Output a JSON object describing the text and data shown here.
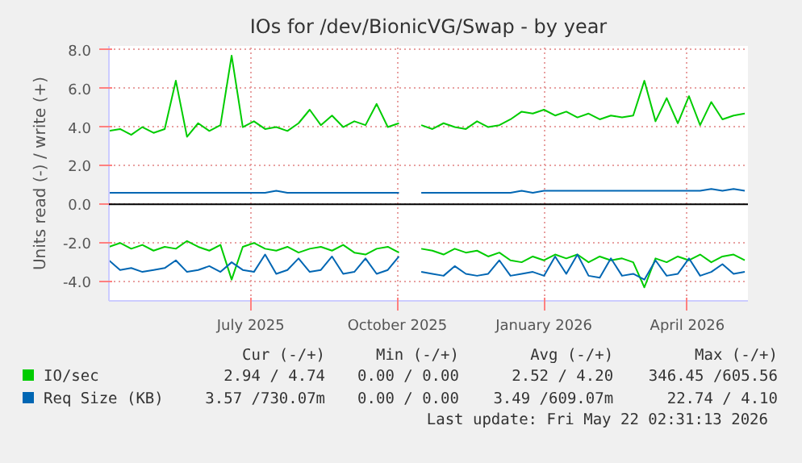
{
  "chart_data": {
    "type": "line",
    "title": "IOs for /dev/BionicVG/Swap - by year",
    "ylabel": "Units read (-) / write (+)",
    "x": [
      "2025-04-18",
      "2025-04-25",
      "2025-05-02",
      "2025-05-09",
      "2025-05-16",
      "2025-05-23",
      "2025-05-30",
      "2025-06-06",
      "2025-06-13",
      "2025-06-20",
      "2025-06-27",
      "2025-07-04",
      "2025-07-11",
      "2025-07-18",
      "2025-07-25",
      "2025-08-01",
      "2025-08-08",
      "2025-08-15",
      "2025-08-22",
      "2025-08-29",
      "2025-09-05",
      "2025-09-12",
      "2025-09-19",
      "2025-09-26",
      "2025-10-03",
      "2025-10-10",
      "2025-10-17",
      "2025-10-24",
      "2025-10-31",
      "2025-11-07",
      "2025-11-14",
      "2025-11-21",
      "2025-11-28",
      "2025-12-05",
      "2025-12-12",
      "2025-12-19",
      "2025-12-26",
      "2026-01-02",
      "2026-01-09",
      "2026-01-16",
      "2026-01-23",
      "2026-01-30",
      "2026-02-06",
      "2026-02-13",
      "2026-02-20",
      "2026-02-27",
      "2026-03-06",
      "2026-03-13",
      "2026-03-20",
      "2026-03-27",
      "2026-04-03",
      "2026-04-10",
      "2026-04-17",
      "2026-04-24",
      "2026-05-01",
      "2026-05-08",
      "2026-05-15",
      "2026-05-22"
    ],
    "series": [
      {
        "name": "IO/sec",
        "color": "#00cc00",
        "values": [
          3.8,
          3.9,
          3.6,
          4.0,
          3.7,
          3.9,
          6.4,
          3.5,
          4.2,
          3.8,
          4.1,
          7.7,
          4.0,
          4.3,
          3.9,
          4.0,
          3.8,
          4.2,
          4.9,
          4.1,
          4.6,
          4.0,
          4.3,
          4.1,
          5.2,
          4.0,
          4.2,
          null,
          4.1,
          3.9,
          4.2,
          4.0,
          3.9,
          4.3,
          4.0,
          4.1,
          4.4,
          4.8,
          4.7,
          4.9,
          4.6,
          4.8,
          4.5,
          4.7,
          4.4,
          4.6,
          4.5,
          4.6,
          6.4,
          4.3,
          5.5,
          4.2,
          5.6,
          4.1,
          5.3,
          4.4,
          4.6,
          4.7
        ]
      },
      {
        "color": "#00cc00",
        "values": [
          -2.2,
          -2.0,
          -2.3,
          -2.1,
          -2.4,
          -2.2,
          -2.3,
          -1.9,
          -2.2,
          -2.4,
          -2.1,
          -3.9,
          -2.2,
          -2.0,
          -2.3,
          -2.4,
          -2.2,
          -2.5,
          -2.3,
          -2.2,
          -2.4,
          -2.1,
          -2.5,
          -2.6,
          -2.3,
          -2.2,
          -2.5,
          null,
          -2.3,
          -2.4,
          -2.6,
          -2.3,
          -2.5,
          -2.4,
          -2.7,
          -2.5,
          -2.9,
          -3.0,
          -2.7,
          -2.9,
          -2.6,
          -2.8,
          -2.6,
          -3.0,
          -2.7,
          -2.9,
          -2.8,
          -3.0,
          -4.3,
          -2.8,
          -3.0,
          -2.7,
          -2.9,
          -2.6,
          -3.0,
          -2.7,
          -2.6,
          -2.9
        ]
      },
      {
        "name": "Req Size (KB)",
        "color": "#0066b3",
        "values": [
          0.6,
          0.6,
          0.6,
          0.6,
          0.6,
          0.6,
          0.6,
          0.6,
          0.6,
          0.6,
          0.6,
          0.6,
          0.6,
          0.6,
          0.6,
          0.7,
          0.6,
          0.6,
          0.6,
          0.6,
          0.6,
          0.6,
          0.6,
          0.6,
          0.6,
          0.6,
          0.6,
          null,
          0.6,
          0.6,
          0.6,
          0.6,
          0.6,
          0.6,
          0.6,
          0.6,
          0.6,
          0.7,
          0.6,
          0.7,
          0.7,
          0.7,
          0.7,
          0.7,
          0.7,
          0.7,
          0.7,
          0.7,
          0.7,
          0.7,
          0.7,
          0.7,
          0.7,
          0.7,
          0.8,
          0.7,
          0.8,
          0.7
        ]
      },
      {
        "color": "#0066b3",
        "values": [
          -2.9,
          -3.4,
          -3.3,
          -3.5,
          -3.4,
          -3.3,
          -2.9,
          -3.5,
          -3.4,
          -3.2,
          -3.5,
          -3.0,
          -3.4,
          -3.5,
          -2.6,
          -3.6,
          -3.4,
          -2.8,
          -3.5,
          -3.4,
          -2.7,
          -3.6,
          -3.5,
          -2.8,
          -3.6,
          -3.4,
          -2.7,
          null,
          -3.5,
          -3.6,
          -3.7,
          -3.2,
          -3.6,
          -3.7,
          -3.6,
          -2.9,
          -3.7,
          -3.6,
          -3.5,
          -3.7,
          -2.7,
          -3.6,
          -2.6,
          -3.7,
          -3.8,
          -2.8,
          -3.7,
          -3.6,
          -3.9,
          -2.9,
          -3.7,
          -3.6,
          -2.8,
          -3.7,
          -3.5,
          -3.1,
          -3.6,
          -3.5
        ]
      }
    ],
    "ylim": [
      -5,
      8.2
    ],
    "yticks": [
      {
        "value": -4,
        "label": "-4.0"
      },
      {
        "value": -2,
        "label": "-2.0"
      },
      {
        "value": 0,
        "label": "0.0"
      },
      {
        "value": 2,
        "label": "2.0"
      },
      {
        "value": 4,
        "label": "4.0"
      },
      {
        "value": 6,
        "label": "6.0"
      },
      {
        "value": 8,
        "label": "8.0"
      }
    ],
    "xlim": [
      "2025-04-18",
      "2026-05-24"
    ],
    "xticks": [
      {
        "value": "2025-07-16",
        "label": "July 2025"
      },
      {
        "value": "2025-10-16",
        "label": "October 2025"
      },
      {
        "value": "2026-01-16",
        "label": "January 2026"
      },
      {
        "value": "2026-04-16",
        "label": "April 2026"
      }
    ],
    "ref_lines": [
      {
        "axis": "y",
        "value": 0,
        "color": "#000000"
      }
    ],
    "grid": true,
    "legend": "bottom",
    "annotations": [
      "Cur (-/+)",
      "Min (-/+)",
      "Avg (-/+)",
      "Max (-/+)",
      "2.94 / 4.74",
      "0.00 / 0.00",
      "2.52 / 4.20",
      "346.45 /605.56",
      "3.57 /730.07m",
      "0.00 / 0.00",
      "3.49 /609.07m",
      "22.74 / 4.10",
      "Last update: Fri May 22 02:31:13 2026"
    ]
  }
}
